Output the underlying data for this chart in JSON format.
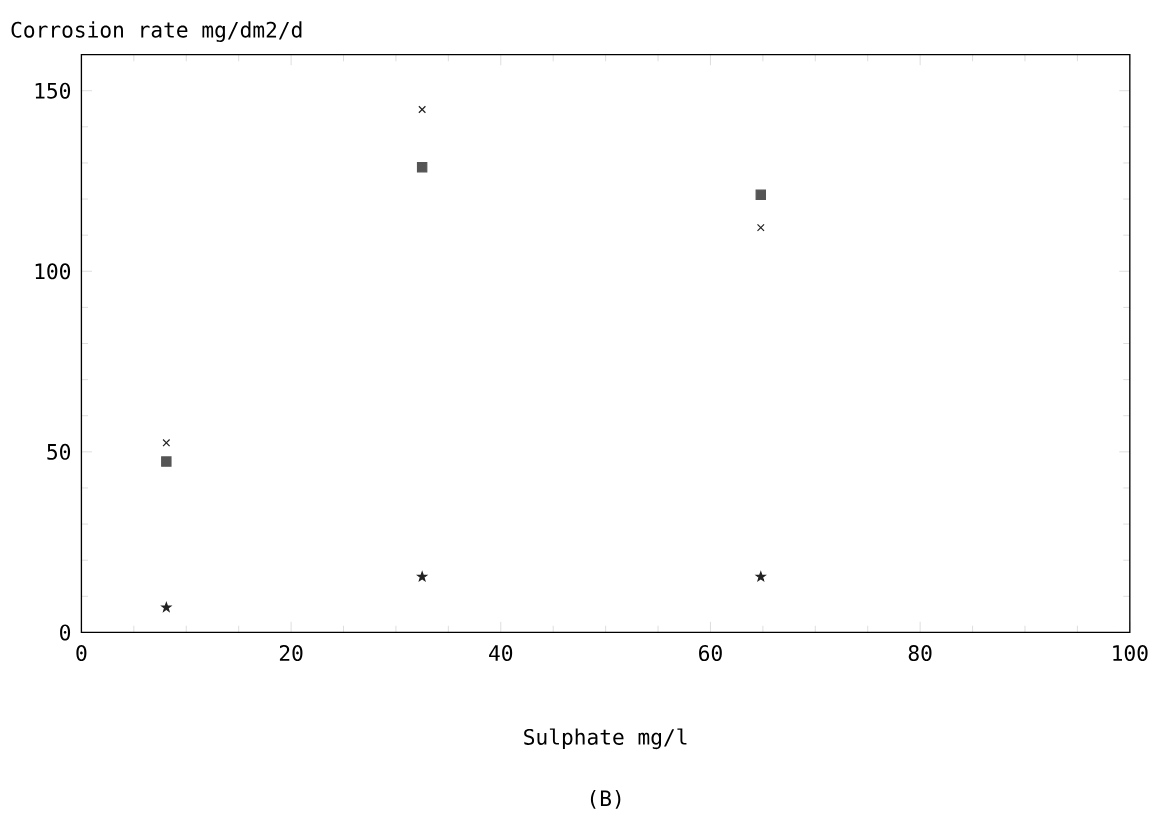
{
  "chart_data": {
    "type": "scatter",
    "title": "Corrosion rate mg/dm2/d",
    "xlabel": "Sulphate mg/l",
    "annotations": [
      "(B)"
    ],
    "xlim": [
      0,
      100
    ],
    "ylim": [
      0,
      160
    ],
    "xticks": [
      0,
      20,
      40,
      60,
      80,
      100
    ],
    "yticks": [
      0,
      50,
      100,
      150
    ],
    "series": [
      {
        "x": [
          8.1,
          32.5,
          64.8
        ],
        "values": [
          52.5,
          144.8,
          112.1
        ],
        "color": "#222222",
        "marker": "cross"
      },
      {
        "x": [
          8.1,
          32.5,
          64.8
        ],
        "values": [
          47.3,
          128.8,
          121.2
        ],
        "color": "#555555",
        "marker": "square"
      },
      {
        "x": [
          8.1,
          32.5,
          64.8
        ],
        "values": [
          6.9,
          15.4,
          15.4
        ],
        "color": "#222222",
        "marker": "star"
      }
    ]
  }
}
